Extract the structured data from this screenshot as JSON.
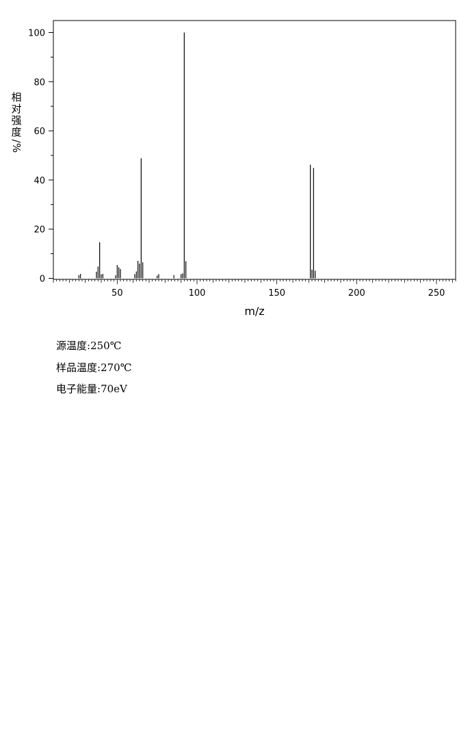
{
  "chart_data": {
    "type": "bar",
    "xlabel": "m/z",
    "ylabel": "相对强度/%",
    "xlim": [
      10,
      262
    ],
    "ylim": [
      0,
      100
    ],
    "x_ticks": [
      50,
      100,
      150,
      200,
      250
    ],
    "y_ticks": [
      0,
      20,
      40,
      60,
      80,
      100
    ],
    "grid": false,
    "peaks": [
      {
        "mz": 26.0,
        "intensity": 1.3
      },
      {
        "mz": 27.0,
        "intensity": 1.8
      },
      {
        "mz": 37.0,
        "intensity": 2.7
      },
      {
        "mz": 38.0,
        "intensity": 4.8
      },
      {
        "mz": 39.0,
        "intensity": 14.7
      },
      {
        "mz": 40.0,
        "intensity": 1.6
      },
      {
        "mz": 41.0,
        "intensity": 1.8
      },
      {
        "mz": 49.0,
        "intensity": 1.2
      },
      {
        "mz": 50.0,
        "intensity": 5.4
      },
      {
        "mz": 51.0,
        "intensity": 4.5
      },
      {
        "mz": 52.0,
        "intensity": 3.8
      },
      {
        "mz": 61.0,
        "intensity": 1.7
      },
      {
        "mz": 62.0,
        "intensity": 2.8
      },
      {
        "mz": 63.0,
        "intensity": 7.1
      },
      {
        "mz": 64.0,
        "intensity": 6.0
      },
      {
        "mz": 65.0,
        "intensity": 48.8
      },
      {
        "mz": 66.0,
        "intensity": 6.5
      },
      {
        "mz": 75.0,
        "intensity": 1.1
      },
      {
        "mz": 76.0,
        "intensity": 1.7
      },
      {
        "mz": 85.5,
        "intensity": 1.3
      },
      {
        "mz": 90.0,
        "intensity": 1.7
      },
      {
        "mz": 91.0,
        "intensity": 2.0
      },
      {
        "mz": 92.0,
        "intensity": 100.0
      },
      {
        "mz": 93.0,
        "intensity": 7.0
      },
      {
        "mz": 171.0,
        "intensity": 46.2
      },
      {
        "mz": 172.0,
        "intensity": 3.5
      },
      {
        "mz": 173.0,
        "intensity": 44.9
      },
      {
        "mz": 174.0,
        "intensity": 3.1
      }
    ]
  },
  "parameters": [
    {
      "label": "源温度",
      "value": "250℃"
    },
    {
      "label": "样品温度",
      "value": "270℃"
    },
    {
      "label": "电子能量",
      "value": "70eV"
    }
  ],
  "table": {
    "left": [
      [
        "26.0",
        "1.3"
      ],
      [
        "27.0",
        "1.8"
      ],
      [
        "37.0",
        "2.7"
      ],
      [
        "38.0",
        "4.8"
      ],
      [
        "39.0",
        "14.7"
      ],
      [
        "40.0",
        "1.6"
      ],
      [
        "41.0",
        "1.8"
      ],
      [
        "49.0",
        "1.2"
      ],
      [
        "50.0",
        "5.4"
      ],
      [
        "51.0",
        "4.5"
      ],
      [
        "52.0",
        "3.8"
      ],
      [
        "61.0",
        "1.7"
      ],
      [
        "62.0",
        "2.8"
      ],
      [
        "63.0",
        "7.1"
      ],
      [
        "64.0",
        "6.0"
      ],
      [
        "65.0",
        "48.8"
      ]
    ],
    "right": [
      [
        "64.0",
        "6.0"
      ],
      [
        "65.0",
        "48.8"
      ],
      [
        "66.0",
        "6.5"
      ],
      [
        "75.0",
        "1.1"
      ],
      [
        "76.0",
        "1.7"
      ],
      [
        "85.5",
        "1.3"
      ],
      [
        "90.0",
        "1.7"
      ],
      [
        "91.0",
        "2.0"
      ],
      [
        "92.0",
        "100.0"
      ],
      [
        "93.0",
        "7.0"
      ],
      [
        "171.0",
        "46.2"
      ],
      [
        "172.0",
        "3.5"
      ],
      [
        "173.0",
        "44.9"
      ],
      [
        "174.0",
        "3.1"
      ]
    ]
  }
}
